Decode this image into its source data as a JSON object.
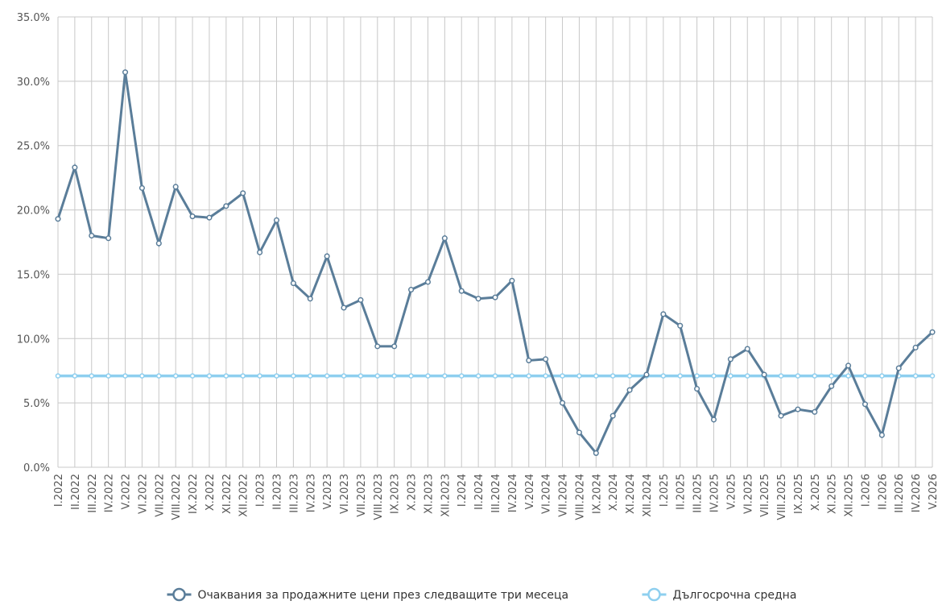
{
  "chart_data": {
    "type": "line",
    "categories": [
      "I.2022",
      "II.2022",
      "III.2022",
      "IV.2022",
      "V.2022",
      "VI.2022",
      "VII.2022",
      "VIII.2022",
      "IX.2022",
      "X.2022",
      "XI.2022",
      "XII.2022",
      "I.2023",
      "II.2023",
      "III.2023",
      "IV.2023",
      "V.2023",
      "VI.2023",
      "VII.2023",
      "VIII.2023",
      "IX.2023",
      "X.2023",
      "XI.2023",
      "XII.2023",
      "I.2024",
      "II.2024",
      "III.2024",
      "IV.2024",
      "V.2024",
      "VI.2024",
      "VII.2024",
      "VIII.2024",
      "IX.2024",
      "X.2024",
      "XI.2024",
      "XII.2024",
      "I.2025",
      "II.2025",
      "III.2025",
      "IV.2025",
      "V.2025",
      "VI.2025",
      "VII.2025",
      "VIII.2025",
      "IX.2025",
      "X.2025",
      "XI.2025",
      "XII.2025",
      "I.2026",
      "II.2026",
      "III.2026",
      "IV.2026",
      "V.2026"
    ],
    "series": [
      {
        "name": "Очаквания за продажните цени през следващите три месеца",
        "color": "#5a7d99",
        "values": [
          19.3,
          23.3,
          18.0,
          17.8,
          30.7,
          21.7,
          17.4,
          21.8,
          19.5,
          19.4,
          20.3,
          21.3,
          16.7,
          19.2,
          14.3,
          13.1,
          16.4,
          12.4,
          13.0,
          9.4,
          9.4,
          13.8,
          14.4,
          17.8,
          13.7,
          13.1,
          13.2,
          14.5,
          8.3,
          8.4,
          5.0,
          2.7,
          1.1,
          4.0,
          6.0,
          7.2,
          11.9,
          11.0,
          6.1,
          3.7,
          8.4,
          9.2,
          7.2,
          4.0,
          4.5,
          4.3,
          6.3,
          7.9,
          4.9,
          2.5,
          7.7,
          9.3,
          10.5
        ]
      },
      {
        "name": "Дългосрочна средна",
        "color": "#8ecfef",
        "values": [
          7.1,
          7.1,
          7.1,
          7.1,
          7.1,
          7.1,
          7.1,
          7.1,
          7.1,
          7.1,
          7.1,
          7.1,
          7.1,
          7.1,
          7.1,
          7.1,
          7.1,
          7.1,
          7.1,
          7.1,
          7.1,
          7.1,
          7.1,
          7.1,
          7.1,
          7.1,
          7.1,
          7.1,
          7.1,
          7.1,
          7.1,
          7.1,
          7.1,
          7.1,
          7.1,
          7.1,
          7.1,
          7.1,
          7.1,
          7.1,
          7.1,
          7.1,
          7.1,
          7.1,
          7.1,
          7.1,
          7.1,
          7.1,
          7.1,
          7.1,
          7.1,
          7.1,
          7.1
        ]
      }
    ],
    "ylim": [
      0,
      35
    ],
    "yticks": [
      {
        "value": 0,
        "label": "0.0%"
      },
      {
        "value": 5,
        "label": "5.0%"
      },
      {
        "value": 10,
        "label": "10.0%"
      },
      {
        "value": 15,
        "label": "15.0%"
      },
      {
        "value": 20,
        "label": "20.0%"
      },
      {
        "value": 25,
        "label": "25.0%"
      },
      {
        "value": 30,
        "label": "30.0%"
      },
      {
        "value": 35,
        "label": "35.0%"
      }
    ],
    "grid": true
  }
}
